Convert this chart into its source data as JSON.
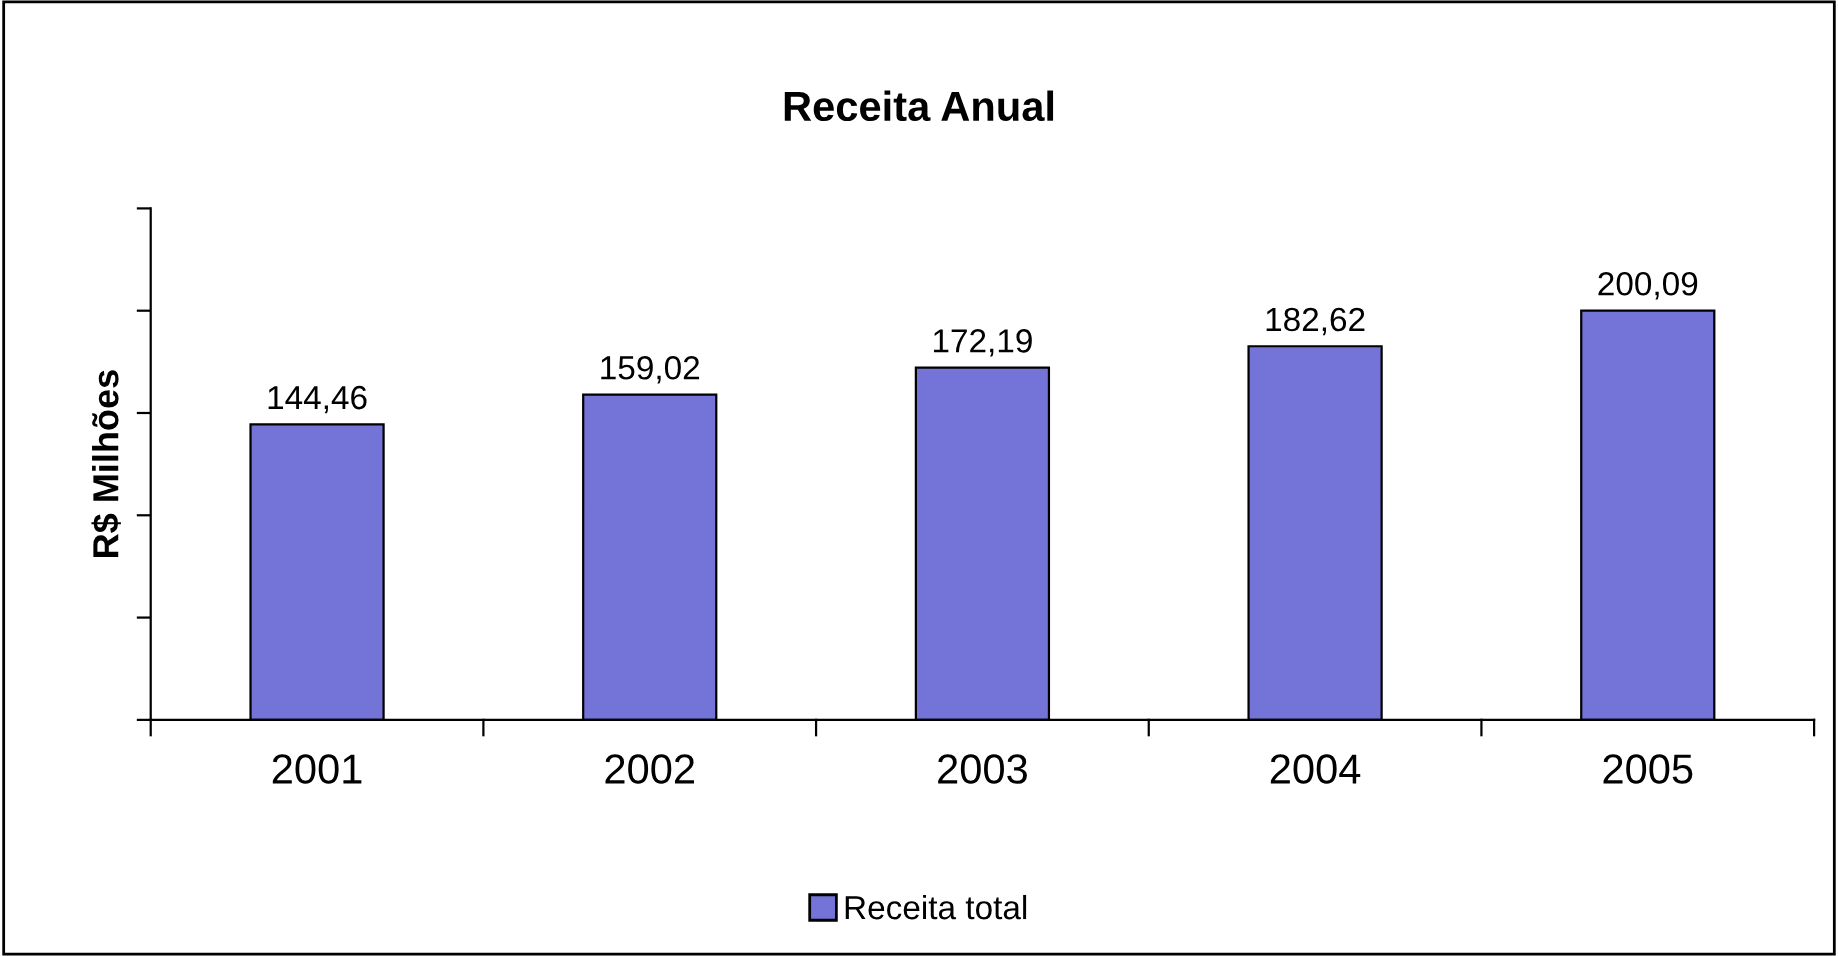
{
  "chart_data": {
    "type": "bar",
    "title": "Receita Anual",
    "ylabel": "R$ Milhões",
    "categories": [
      "2001",
      "2002",
      "2003",
      "2004",
      "2005"
    ],
    "series": [
      {
        "name": "Receita total",
        "color": "#7474d8",
        "values": [
          144.46,
          159.02,
          172.19,
          182.62,
          200.09
        ],
        "value_labels": [
          "144,46",
          "159,02",
          "172,19",
          "182,62",
          "200,09"
        ]
      }
    ],
    "ylim": [
      0,
      250
    ],
    "yticks": [
      {
        "value": 0,
        "label": null
      },
      {
        "value": 50,
        "label": null
      },
      {
        "value": 100,
        "label": null
      },
      {
        "value": 150,
        "label": null
      },
      {
        "value": 200,
        "label": null
      },
      {
        "value": 250,
        "label": null
      }
    ],
    "tick_labels": "x",
    "grid": false,
    "legend": "bottom"
  }
}
